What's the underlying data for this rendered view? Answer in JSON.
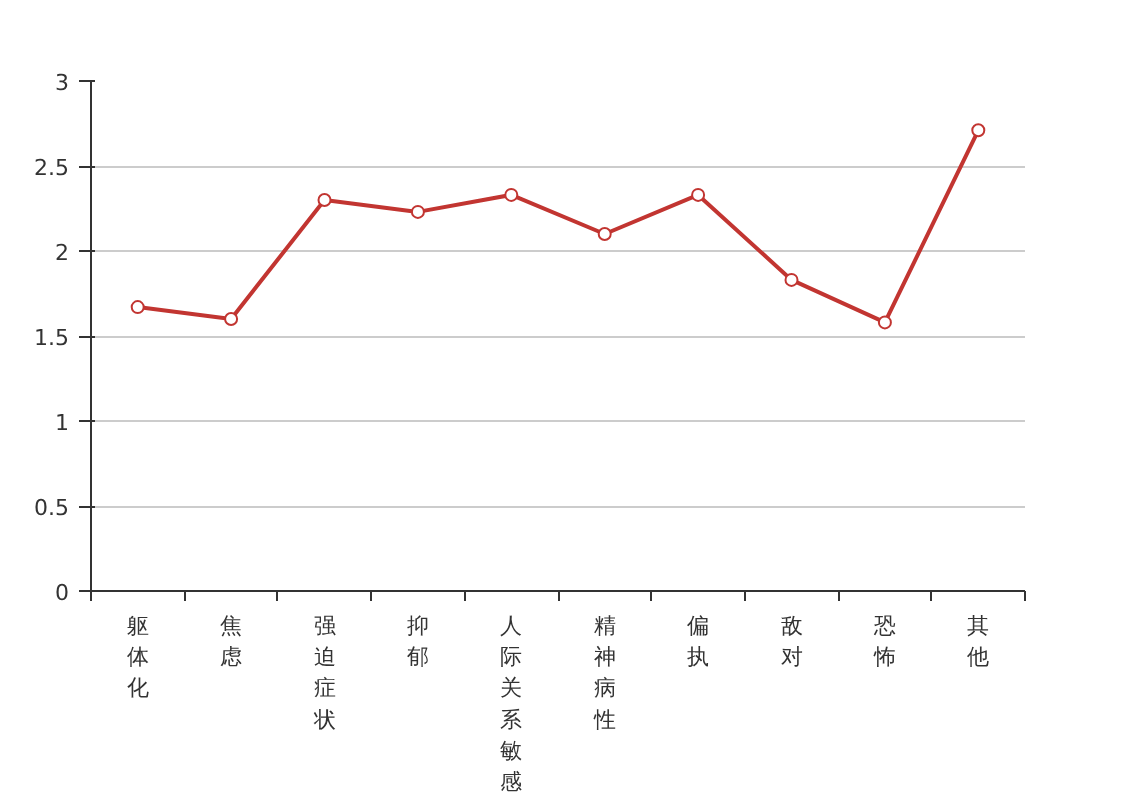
{
  "chart_data": {
    "type": "line",
    "categories": [
      "躯体化",
      "焦虑",
      "强迫症状",
      "抑郁",
      "人际关系敏感",
      "精神病性",
      "偏执",
      "敌对",
      "恐怖",
      "其他"
    ],
    "series": [
      {
        "color": "#c23531",
        "values": [
          1.67,
          1.6,
          2.3,
          2.23,
          2.33,
          2.1,
          2.33,
          1.83,
          1.58,
          2.71
        ]
      }
    ],
    "ylim": [
      0,
      3
    ],
    "yticks": [
      0,
      0.5,
      1,
      1.5,
      2,
      2.5,
      3
    ],
    "grid": "y",
    "marker": "circle"
  }
}
